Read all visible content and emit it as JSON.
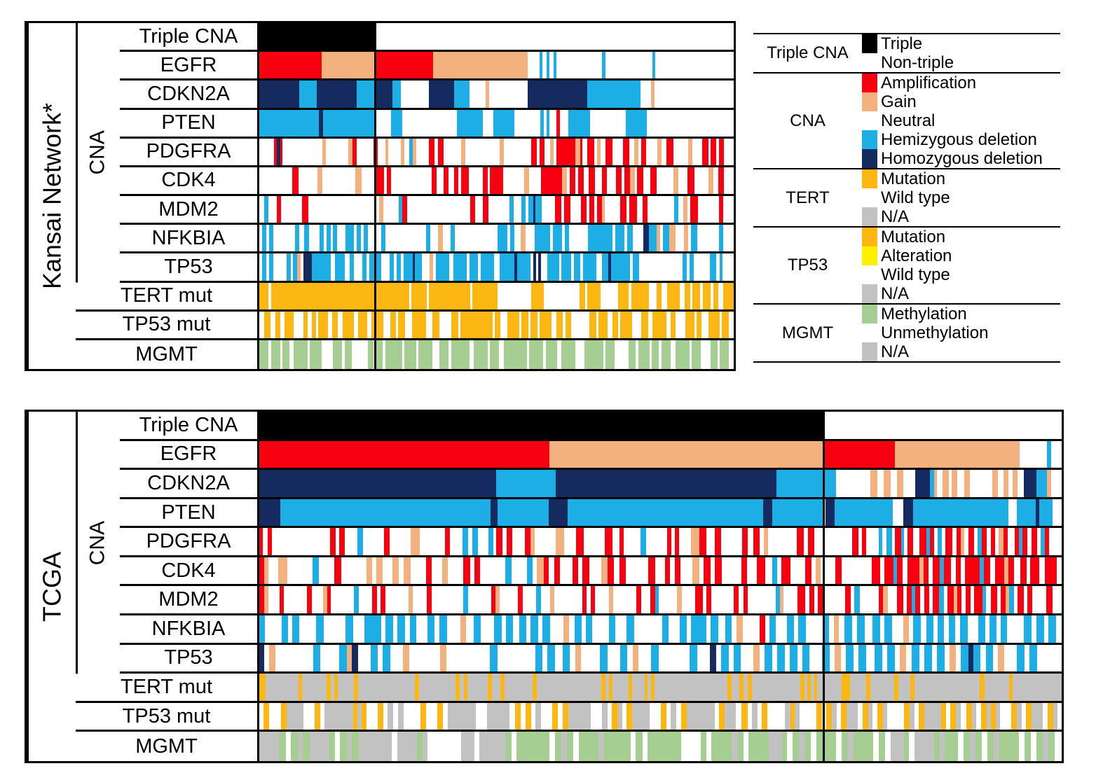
{
  "figure": {
    "kind": "oncoprint genomic alteration figure",
    "panels_count": 2
  },
  "chart_data": {
    "type": "heatmap",
    "subtype": "oncoprint",
    "description": "Genomic alteration oncoprint for glioma cohorts. Each panel: samples as columns, alteration tracks as rows. A black vertical divider separates Triple-CNA-positive samples (left) from non-triple samples (right).",
    "row_labels": [
      "Triple CNA",
      "EGFR",
      "CDKN2A",
      "PTEN",
      "PDGFRA",
      "CDK4",
      "MDM2",
      "NFKBIA",
      "TP53",
      "TERT mut",
      "TP53 mut",
      "MGMT"
    ],
    "colors": {
      "T": "#000000",
      "W": "#ffffff",
      "A": "#f7000f",
      "G": "#f2b17e",
      "H": "#1caee5",
      "D": "#152a5f",
      "M": "#fcb712",
      "Y": "#fff200",
      "X": "#c2c2c2",
      "E": "#a7ce92"
    },
    "codes": {
      "T": "Triple",
      "W": "Non-triple / Neutral / Wild type / Unmethylation (white)",
      "A": "Amplification",
      "G": "Gain",
      "H": "Hemizygous deletion",
      "D": "Homozygous deletion",
      "M": "Mutation",
      "Y": "Alteration",
      "X": "N/A",
      "E": "Methylation"
    },
    "panels": [
      {
        "id": "kansai",
        "title": "Kansai Network*",
        "cna_label": "CNA",
        "divider_pct": 24.3,
        "rows": [
          {
            "label": "Triple CNA",
            "group": "cna",
            "segments": "24.3T 75.7W"
          },
          {
            "label": "EGFR",
            "group": "cna",
            "segments": "13.2A 11.1G 12.3A 20G 2.5W .6H .8W .6H 1W .6H 9.6W .6H 10W .6H 16.5W"
          },
          {
            "label": "CDKN2A",
            "group": "cna",
            "segments": "8.4D 3.7H 8.5D 3.7H 3.7D 1.9H 5.8W 5.3D 3.3H 3.4W .7G 8.2W 12.6D 11.1H 2.2W .8G 16.7W"
          },
          {
            "label": "PTEN",
            "group": "cna",
            "segments": "12.5H .9D 10.9H 3.5W 2.3H 11.5W 5.5H 2.2W 4.5H 5.5W .6H .6W .6H 1.6W .7A 1.8W 4.5H 7.5W 4.5H 18.3W"
          },
          {
            "label": "PDGFRA",
            "group": "cna",
            "segments": "3W .5A .7D .5A 8W .8G 4.5W .8G .8A 3.5W .8A 1.5W .6G 2.5W .7G 1W .7H .8G 2.5W 1.2A .6W 1.2A 3.5W .8G 7W .8G 5.5W 1.2A .6W 1A 1W .8G .6W 3.8A .9G .5A 1W 1.4A .5W .8G 1W 1.4A 2W 1.4A 1W .8G .6W 1A 2.2W .8G 1W 1.4A 3W .8G 2W 1.3A .5W 1A .6W 1A 2W"
          },
          {
            "label": "CDK4",
            "group": "cna",
            "segments": "7W 1.3A 4W 1G 7W 1.3G 3W 1.8A .5W 1A 8.5W 1A 1.5W 1A 1.2W 1A .5W 1.6A 3W 1A .5W 2.8A 4.5W 1G 2.5W 4.5A 1G .5W 1.3A .5W 1.3A 1W 1.3A 1.5W 1A 2W 1.2A .5W 1.2A 1G .5W 1.3A 1.5W 1.4A 3.5W 1G 2W 1.4A 3W 1G 1W 1.3A 2W"
          },
          {
            "label": "MDM2",
            "group": "cna",
            "segments": "1W .8H 1.5W .8A 4W 1.2A 13.5W .8G 3W .7H .9A 12W 1A 1.5W 1A 4W .8H 1.5W .8H .5W 1H .4D 1.2H 2.5W 1.2A .6W 1.2A 2W 1A .5W 1A .5W 1A .5G 3W 1.2A .5W 1.5A 1W 1A 5W .8H 1W .8G .5W 1.5A 4W .8A 2W"
          },
          {
            "label": "NFKBIA",
            "group": "cna",
            "segments": ".5W .8H .5W .8H 4W .8H 1W .8H 2W .8H .5W .8H .4W .8H 1.5W 1.6H .5W .8H .5W .8H 2.5W .8H 7.5W .8H 1.5W .8G 1.5W .8H 8W 1.8H .5W .8H 1.2W .8G 1.8W 2.8H .5W 1.8H .5W .8H 3.5W 4.5H .5W 1.8H .5W 1H 2W 1D 1.5H .6G .5W 1.2H 1.2G 1.5W .8G .5W 1.2H 4W .8H 2W"
          },
          {
            "label": "TP53",
            "group": "cna",
            "segments": ".5W .8H .5W .8H 2.5W .8H .3W .8H .7G .5W 1.5D 3.5H .8W 1.8H 1W .8H 1.5W .8H .5W 2.2H 1.5W .8H .5W .8H .5W 1.8H .4D 1.2H 1.5W .6G .5W 2.5H .8W 2.5H .5W 1.5H .5W 2.5H 1W 2.8H .5D 2.5H .5W .5D .4W .5D 1.2W 2.2H .4W 1.8H .5W 1.2H .5W 2.5H 1W 1.2H .5D 3.5H .5W 1.2H 8W .8H .5W .8H 3W 1.2H .6W .6H 2W"
          },
          {
            "label": "TERT mut",
            "group": "mut",
            "segments": "1.8M .5W 22M 5M .4W 3M .4W 8M .4W 5M 6.5W 2.5M 7W 1M .5W 2.5M 3.5W 2M .5W 3.5M 1.5W 1M 1W 2.5M 1W 1M .5W 1.5M .5W 1.5M .5W 1M 1W 2M"
          },
          {
            "label": "TP53 mut",
            "group": "mut",
            "segments": "1W 1.5M 1W 1M 1W 2M 2W 1M .8W 1M .5W 2M 1W 1.2M 1W 2.5M .8W 2M 1W 2.5M 1.5W 1.2M .5W 1.5M 1.5W 3M 1.5W 1.5M 2.5W 1.5M .5W 7M .5W 1.2M 1.5W 2.5M .5W 1.5M .5W 1.5M .5W 2.5M 1W 1.5M .5W 1.2M 4W 1.5M .5W 2M 1W 1.2M .5W 2.5M 2W 1.5M 1W 3M .8W 1.2M 2W 2M .5W 1M 1.5W 2.5M .5W 1.5M 1W"
          },
          {
            "label": "MGMT",
            "group": "mut",
            "segments": "2E .5W 2E .5W 1.5E .8W 3E .5W 2.5E 2.5W 2E .5W 1.5E 3.5W 1.2E .5W 1.5E .6W 3.5E .5W 2.5E .5W 3E 1.5W 2E .5W 4E .8W 3E .5W 2E 1W 5E .5W 3E .5W 2.5E .8W 3E 2W 4E .5W 2E 3W 1.5E .5W 2.5E .5W 1.5E .5W 2E 1W 3E .5W 2E 2W 1.5E .5W 2E 1W"
          }
        ]
      },
      {
        "id": "tcga",
        "title": "TCGA",
        "cna_label": "CNA",
        "divider_pct": 70.3,
        "rows": [
          {
            "label": "Triple CNA",
            "group": "cna",
            "segments": "70.4T 29.6W"
          },
          {
            "label": "EGFR",
            "group": "cna",
            "segments": "36.2A 34.2G 8.8A 15.6G 3.4W .5H 1.3W"
          },
          {
            "label": "CDKN2A",
            "group": "cna",
            "segments": "28.9D 7.3H 26.9D 7.3H 4.2W .8G .8W .8G .8W .8G 1.4W 1.8D .5H .4G .7W .7G .4W .7G .8W .7G 2.7W .7G .7W .6G .5W .6G .8W 1.5D 1.3H .5G 1.3W"
          },
          {
            "label": "PTEN",
            "group": "cna",
            "segments": "2.6D 26.3H .9D 6.4H 2.3D 24.5H 1.1D 6.3H .4W 1.1D 7.3H 1.3W 1.2D 11.9H 1.1W 2.4H .4D 1.7H 1.1W"
          },
          {
            "label": "PDGFRA",
            "group": "cna",
            "segments": ".4A .6W .5A 7W .7A .4W .7A 1.5W .7H 2.5W .7A 2.5W 1.1G 3W .6A 1.5W .7H .5W .7H 1.2W .6H .4W .7A .5W .7A 1.5W .7A .5G 2.5W 1G 1.5W .9A 2.5W .9A .9W .5A 2W .7H 2.5W .5A .4W .5A 1.5W 1G .8A 1W .8A 2.5W .7A .7W .7A .5W .5G 3.5W .8A .5W .8A 4.5W .8A .4W .5A 1.5W .5H .5W .6H .4W .7A .4H .4W .7A .7W .9A .4H .5A .4W .5H .4W .9A .5W .5A .4G .5W .7A .4W .5H .6A .5W .5A .4W .6G .5A .9W .5A .4H .6A .5W .7A .4W .5H .5A 1.5W"
          },
          {
            "label": "CDK4",
            "group": "cna",
            "segments": ".5A .4G 1W .9G 2.5W .6H 1.5W .7A 2.5W .6G .4W .6G 1W .6G .5W .7G 1.5W .6A 1W .6G 1.5W .7A .4W .6A 2.5W .6H 1.5W .6H .4W .7G .5A .5W .6A 1.2W .6A .4W .7A 1.2W .6G .6A .6W .6A 2.2W .7A 1W .5A .5W .5A 1.2W .7G .4W .7A .4W .7A 2W .5A 1W .8A .7W .5H .4W .9A 1.5W .6A .4W .5G 1.5W .6A 3W .8A .4W .9A .4H .5A .5W 1.2A .4G .5A .4W .7A .4H .7A .5W .5A .4W 1.5A .4H .6A .5W .9A .4G .6A .6W .6A .4W .9A .5W 1.2A .5W"
          },
          {
            "label": "MDM2",
            "group": "cna",
            "segments": ".5A .5G 1.2W .5A 2.5W .5A 1.2W .5G .4A 2.5W .5H 1.5W .5A .4W .5A 2.5W .5G 1.5W .5A 3.5W .5H 2.5W .5A .4G 2W .5A 1.5W .5H 1W .5G 3W .5A .4W .5A 1.5W .5G 2.5W .5A 1W .5A .4H 2W .5G 1.5W .8A .4W .5A 2.5W .5A .5W .5A 3W .5H .4G 1.5W .8A .5W .5A .4W .5A 2.5W .6A .4W .6H 2W .5A .5G 1W .7A .4W .5A .4H .5A .5W .5A .4W .7A .5H .4W .7A .4G .4A .5W .5A .4W .9A .4H .5W .7A .4W .5A .4G .5H .4W .7A .4W .5A 1.5W .7A 1W"
          },
          {
            "label": "NFKBIA",
            "group": "cna",
            "segments": ".5H 1.5W .6H .4W .6H 1.5W .7H 2W .7H 1W 1.5H .4W .7H .4W .7H .4W .6H 1W .6H .5W .7H 1.2W .5G .7W .6H 1.2W .7H .4W .6H .6W .6H .4W .7H .4W .7H 1.2W .5G .5W .6H .4W .6H 1.5W .6H 1W .7H 2.5W .6H 1W .6H .4W 1.4H .4W .7H .6W .6H .4W .6G 1.5W .5A .4W .6H 1W .6H .4W .7H 1.5W .6H .4W .5G .5W .7H .4W .7H .7W .7H .4W .7H 1W .5G .4W .7H .5W .6H .4W .6H .4W .6H .4W .7H 1W .6H .4W .6H .4W .6H 1.5W .7H .4W .7H .4W .7H .5W"
          },
          {
            "label": "TP53",
            "group": "cna",
            "segments": ".4D .4W .5G 3W .6H 1.5W .6H .4G .5D 1W .6H .4W .6H 1W .5G 2.5W .5G 3.5W .6H 3W .6H .4W .6H .6W .6H .4W .5G 1.5W .6H 1W .6H .4W .5G 1W .6H 2.5W .6H 1W .5D .4W .6H .4W .6H 1W .5G .4W .6H .4W .6H .4W .6H .4W .6H 1W .6H .4W .5G .4W .6H .4W .6H .7W .6H .4W .6H .4W .5G .5W .6H .4W .6H .4W .6H .4W .5G .4W .6H .4D .6H .4W .6H .4W .5G 1W .6H .4W .6H 2W"
          },
          {
            "label": "TERT mut",
            "group": "mut",
            "segments": ".8M 4X .5M 3X .5M .4X .5M 2X .5M 7X .5M 4.5X .5M .5X .5M 2.5X .5M 1X .5M 3.5X .5M 8X .5M .4X .4M 2X .5M 1.5X .4M .4X .4M 9X .5M 1X .5M .5X .5M 6X .5M .4X .4M .4X .4M 3X 1M 2X .5M 3X .5M 1.5X .5M 8X .6M 3X .5M 6X"
          },
          {
            "label": "TP53 mut",
            "group": "mut",
            "segments": ".4W .5M 1W .5M 1.5X 1W .5M .4W 2.5X .4M .4X .4M 1W .5M .4W .5X .4W .5X 1.5W .5M 1W .5M .4W 2.5X 1W 2X .5W .5M .4W .5M .4W .5X 1W .5M .4W .5M 2X 1W .5X .4W .5M .4X .4W .5M 1.5X 1W .5M .4W .5X .4W .5M 2.5X .4W .5M 1X .5W .5M .4W .5X .4W .5M 1.5W .5X .4M .4X 1.5W .5M .4W .5M .4X .4W .5M 1X .4W .5M .4X .4W .5M .4X 1.5W .5M .4X .4W .5M 1.5X .4M .4W .5M .4X .5W .5M .4X .4W .5M .4X .4M .4X 1W .5M .4X .4W .5M 1X .4W .5M .4X .4W"
          },
          {
            "label": "MGMT",
            "group": "mut",
            "segments": "1.5X .5E .4W .5E .4X .5E 1.5X .4E .4W .5E .4X .5E 2.5X .4W 1.5X .4E .4X 2.5W 1X .4W 2X .4E .4W 2.5E .4W .5E .4X .5E .4W 1.5E .4X 2E .4W .5E .4W 2.5E 1.5W .4E .4W 1.5E .5X .4E .4W 1.5E 1X .4E .4W .5E .4X .5E .4W 1.5E .4W .5E .4X 1.5E .4W .5E .4W 1X .4E .4W 1.5X .4E .4X 1E .4W .5E .4X .5E .4W .5E .4X 1.5E .4W .5E .4W .5E .4X .5E .5W"
          }
        ]
      }
    ],
    "legend": {
      "groups": [
        {
          "label": "Triple CNA",
          "items": [
            {
              "code": "T",
              "text": "Triple"
            },
            {
              "code": "W",
              "text": "Non-triple"
            }
          ]
        },
        {
          "label": "CNA",
          "items": [
            {
              "code": "A",
              "text": "Amplification"
            },
            {
              "code": "G",
              "text": "Gain"
            },
            {
              "code": "W",
              "text": "Neutral"
            },
            {
              "code": "H",
              "text": "Hemizygous deletion"
            },
            {
              "code": "D",
              "text": "Homozygous deletion"
            }
          ]
        },
        {
          "label": "TERT",
          "items": [
            {
              "code": "M",
              "text": "Mutation"
            },
            {
              "code": "W",
              "text": "Wild type"
            },
            {
              "code": "X",
              "text": "N/A"
            }
          ]
        },
        {
          "label": "TP53",
          "items": [
            {
              "code": "M",
              "text": "Mutation"
            },
            {
              "code": "Y",
              "text": "Alteration"
            },
            {
              "code": "W",
              "text": "Wild type"
            },
            {
              "code": "X",
              "text": "N/A"
            }
          ]
        },
        {
          "label": "MGMT",
          "items": [
            {
              "code": "E",
              "text": "Methylation"
            },
            {
              "code": "W",
              "text": "Unmethylation"
            },
            {
              "code": "X",
              "text": "N/A"
            }
          ]
        }
      ]
    }
  }
}
